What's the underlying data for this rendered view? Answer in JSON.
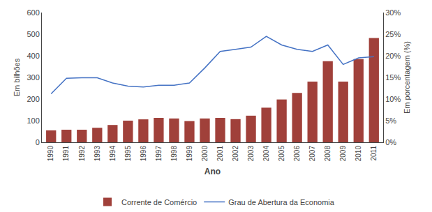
{
  "chart_data": {
    "type": "bar",
    "x": [
      1990,
      1991,
      1992,
      1993,
      1994,
      1995,
      1996,
      1997,
      1998,
      1999,
      2000,
      2001,
      2002,
      2003,
      2004,
      2005,
      2006,
      2007,
      2008,
      2009,
      2010,
      2011
    ],
    "series": [
      {
        "name": "Corrente de Comércio",
        "type": "bar",
        "color": "#a0403a",
        "values": [
          55,
          58,
          58,
          67,
          80,
          100,
          106,
          113,
          110,
          98,
          110,
          113,
          107,
          123,
          160,
          198,
          228,
          281,
          375,
          281,
          385,
          482
        ]
      },
      {
        "name": "Grau de Abertura da Economia",
        "type": "line",
        "color": "#4472c4",
        "axis": "y2",
        "values": [
          11.2,
          14.8,
          14.9,
          14.9,
          13.7,
          13.0,
          12.8,
          13.2,
          13.2,
          13.7,
          17.2,
          21.0,
          21.5,
          22.0,
          24.5,
          22.5,
          21.5,
          21.0,
          22.5,
          18.0,
          19.5,
          19.8
        ]
      }
    ],
    "xlabel": "Ano",
    "ylabel": "Em bilhões",
    "y2label": "Em porcentagem (%)",
    "xlim": [
      1989.4,
      2011.6
    ],
    "xticks": [
      1990,
      1991,
      1992,
      1993,
      1994,
      1995,
      1996,
      1997,
      1998,
      1999,
      2000,
      2001,
      2002,
      2003,
      2004,
      2005,
      2006,
      2007,
      2008,
      2009,
      2010,
      2011
    ],
    "ylim": [
      0,
      600
    ],
    "yticks": [
      0,
      100,
      200,
      300,
      400,
      500,
      600
    ],
    "y2lim": [
      0,
      30
    ],
    "y2ticks": [
      {
        "value": 0,
        "label": "0%"
      },
      {
        "value": 5,
        "label": "5%"
      },
      {
        "value": 10,
        "label": "10%"
      },
      {
        "value": 15,
        "label": "15%"
      },
      {
        "value": 20,
        "label": "20%"
      },
      {
        "value": 25,
        "label": "25%"
      },
      {
        "value": 30,
        "label": "30%"
      }
    ],
    "grid": false,
    "legend": "bottom"
  }
}
